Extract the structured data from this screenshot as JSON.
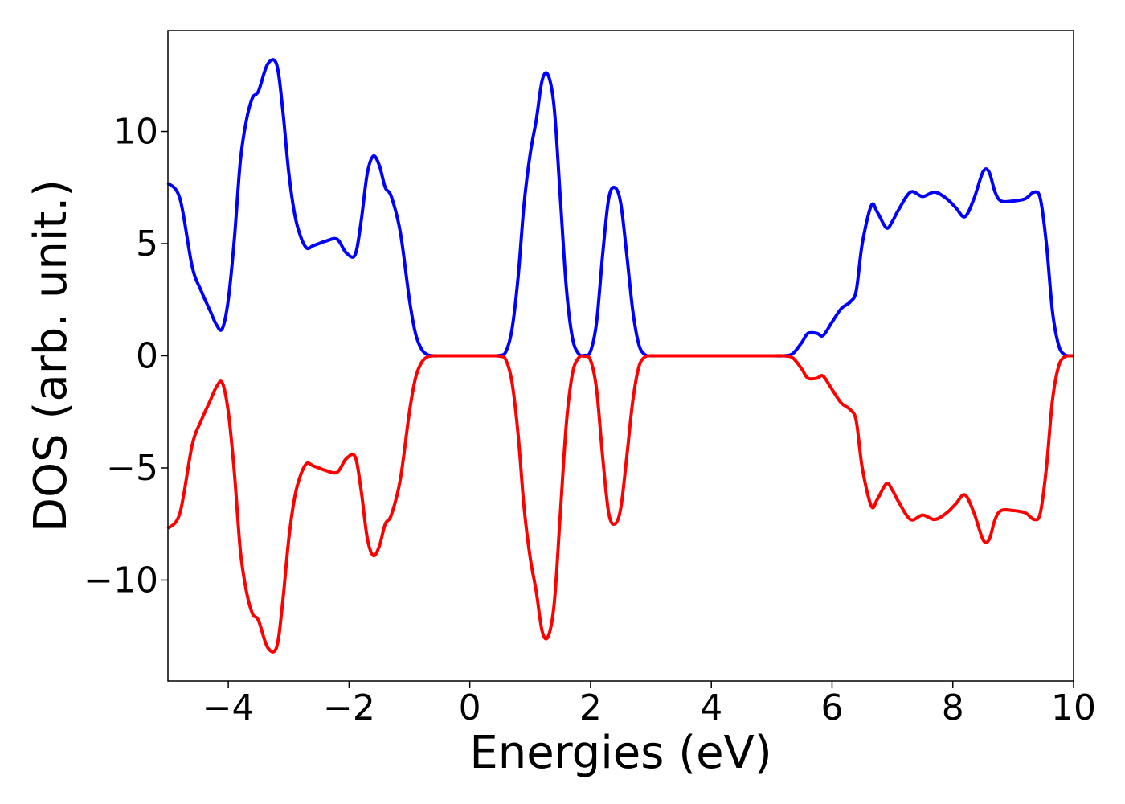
{
  "chart_data": {
    "type": "line",
    "title": "",
    "xlabel": "Energies (eV)",
    "ylabel": "DOS (arb. unit.)",
    "xlim": [
      -5,
      10
    ],
    "ylim": [
      -14.5,
      14.5
    ],
    "grid": false,
    "legend": "none",
    "x_ticks": [
      -4,
      -2,
      0,
      2,
      4,
      6,
      8,
      10
    ],
    "x_tick_labels": [
      "−4",
      "−2",
      "0",
      "2",
      "4",
      "6",
      "8",
      "10"
    ],
    "y_ticks": [
      -10,
      -5,
      0,
      5,
      10
    ],
    "y_tick_labels": [
      "−10",
      "−5",
      "0",
      "5",
      "10"
    ],
    "series": [
      {
        "color": "#0000ff",
        "x": [
          -5.0,
          -4.8,
          -4.6,
          -4.45,
          -4.3,
          -4.2,
          -4.1,
          -4.0,
          -3.9,
          -3.8,
          -3.7,
          -3.6,
          -3.5,
          -3.35,
          -3.2,
          -3.1,
          -3.0,
          -2.9,
          -2.8,
          -2.7,
          -2.6,
          -2.5,
          -2.4,
          -2.2,
          -2.05,
          -1.9,
          -1.8,
          -1.7,
          -1.6,
          -1.5,
          -1.4,
          -1.3,
          -1.15,
          -1.0,
          -0.9,
          -0.8,
          -0.7,
          -0.6,
          -0.5,
          -0.3,
          0.0,
          0.3,
          0.5,
          0.6,
          0.7,
          0.8,
          0.9,
          1.0,
          1.1,
          1.2,
          1.3,
          1.4,
          1.5,
          1.6,
          1.7,
          1.8,
          1.9,
          2.0,
          2.1,
          2.2,
          2.3,
          2.4,
          2.5,
          2.6,
          2.7,
          2.8,
          2.9,
          3.0,
          3.1,
          3.2,
          3.3,
          3.5,
          4.0,
          4.5,
          5.0,
          5.2,
          5.35,
          5.5,
          5.6,
          5.75,
          5.85,
          6.0,
          6.15,
          6.3,
          6.4,
          6.5,
          6.65,
          6.75,
          6.9,
          7.0,
          7.1,
          7.3,
          7.5,
          7.7,
          7.9,
          8.05,
          8.2,
          8.35,
          8.5,
          8.6,
          8.7,
          8.8,
          9.0,
          9.2,
          9.35,
          9.45,
          9.55,
          9.65,
          9.75,
          9.85,
          10.0
        ],
        "y": [
          7.7,
          7.0,
          4.0,
          2.9,
          2.0,
          1.4,
          1.2,
          2.5,
          5.2,
          8.7,
          10.5,
          11.5,
          11.8,
          13.0,
          13.0,
          11.0,
          8.2,
          6.3,
          5.3,
          4.8,
          4.9,
          5.0,
          5.1,
          5.2,
          4.6,
          4.5,
          6.0,
          8.1,
          8.9,
          8.5,
          7.5,
          7.1,
          5.5,
          2.5,
          1.0,
          0.3,
          0.05,
          0.0,
          0.0,
          0.0,
          0.0,
          0.0,
          0.02,
          0.2,
          1.2,
          3.5,
          6.8,
          9.0,
          10.5,
          12.3,
          12.5,
          11.0,
          7.0,
          3.0,
          0.8,
          0.1,
          0.02,
          0.2,
          1.5,
          4.5,
          7.0,
          7.5,
          6.8,
          4.5,
          2.0,
          0.5,
          0.05,
          0.0,
          0.0,
          0.0,
          0.0,
          0.0,
          0.0,
          0.0,
          0.0,
          0.0,
          0.1,
          0.6,
          1.0,
          1.0,
          0.9,
          1.5,
          2.1,
          2.4,
          2.9,
          5.0,
          6.7,
          6.4,
          5.7,
          6.0,
          6.5,
          7.3,
          7.1,
          7.3,
          7.0,
          6.6,
          6.2,
          7.0,
          8.2,
          8.2,
          7.3,
          6.9,
          6.9,
          7.0,
          7.3,
          7.0,
          5.0,
          2.0,
          0.5,
          0.05,
          0.0
        ]
      },
      {
        "color": "#ff0000",
        "x": [
          -5.0,
          -4.8,
          -4.6,
          -4.45,
          -4.3,
          -4.2,
          -4.1,
          -4.0,
          -3.9,
          -3.8,
          -3.7,
          -3.6,
          -3.5,
          -3.35,
          -3.2,
          -3.1,
          -3.0,
          -2.9,
          -2.8,
          -2.7,
          -2.6,
          -2.5,
          -2.4,
          -2.2,
          -2.05,
          -1.9,
          -1.8,
          -1.7,
          -1.6,
          -1.5,
          -1.4,
          -1.3,
          -1.15,
          -1.0,
          -0.9,
          -0.8,
          -0.7,
          -0.6,
          -0.5,
          -0.3,
          0.0,
          0.3,
          0.5,
          0.6,
          0.7,
          0.8,
          0.9,
          1.0,
          1.1,
          1.2,
          1.3,
          1.4,
          1.5,
          1.6,
          1.7,
          1.8,
          1.9,
          2.0,
          2.1,
          2.2,
          2.3,
          2.4,
          2.5,
          2.6,
          2.7,
          2.8,
          2.9,
          3.0,
          3.1,
          3.2,
          3.3,
          3.5,
          4.0,
          4.5,
          5.0,
          5.2,
          5.35,
          5.5,
          5.6,
          5.75,
          5.85,
          6.0,
          6.15,
          6.3,
          6.4,
          6.5,
          6.65,
          6.75,
          6.9,
          7.0,
          7.1,
          7.3,
          7.5,
          7.7,
          7.9,
          8.05,
          8.2,
          8.35,
          8.5,
          8.6,
          8.7,
          8.8,
          9.0,
          9.2,
          9.35,
          9.45,
          9.55,
          9.65,
          9.75,
          9.85,
          10.0
        ],
        "y": [
          -7.7,
          -7.0,
          -4.0,
          -2.9,
          -2.0,
          -1.4,
          -1.2,
          -2.5,
          -5.2,
          -8.7,
          -10.5,
          -11.5,
          -11.8,
          -13.0,
          -13.0,
          -11.0,
          -8.2,
          -6.3,
          -5.3,
          -4.8,
          -4.9,
          -5.0,
          -5.1,
          -5.2,
          -4.6,
          -4.5,
          -6.0,
          -8.1,
          -8.9,
          -8.5,
          -7.5,
          -7.1,
          -5.5,
          -2.5,
          -1.0,
          -0.3,
          -0.05,
          0.0,
          0.0,
          0.0,
          0.0,
          0.0,
          -0.02,
          -0.2,
          -1.2,
          -3.5,
          -6.8,
          -9.0,
          -10.5,
          -12.3,
          -12.5,
          -11.0,
          -7.0,
          -3.0,
          -0.8,
          -0.1,
          -0.02,
          -0.2,
          -1.5,
          -4.5,
          -7.0,
          -7.5,
          -6.8,
          -4.5,
          -2.0,
          -0.5,
          -0.05,
          0.0,
          0.0,
          0.0,
          0.0,
          0.0,
          0.0,
          0.0,
          0.0,
          0.0,
          -0.1,
          -0.6,
          -1.0,
          -1.0,
          -0.9,
          -1.5,
          -2.1,
          -2.4,
          -2.9,
          -5.0,
          -6.7,
          -6.4,
          -5.7,
          -6.0,
          -6.5,
          -7.3,
          -7.1,
          -7.3,
          -7.0,
          -6.6,
          -6.2,
          -7.0,
          -8.2,
          -8.2,
          -7.3,
          -6.9,
          -6.9,
          -7.0,
          -7.3,
          -7.0,
          -5.0,
          -2.0,
          -0.5,
          -0.05,
          0.0
        ]
      }
    ]
  }
}
